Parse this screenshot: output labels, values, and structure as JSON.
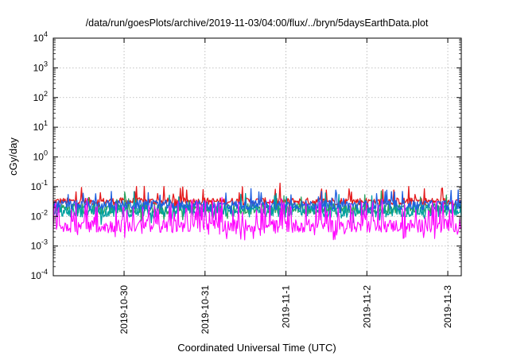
{
  "chart_data": {
    "type": "line",
    "title": "/data/run/goesPlots/archive/2019-11-03/04:00/flux/../bryn/5daysEarthData.plot",
    "xlabel": "Coordinated Universal Time (UTC)",
    "ylabel": "cGy/day",
    "yscale": "log",
    "ylim": [
      0.0001,
      10000
    ],
    "xlim": [
      "2019-10-29T03:00",
      "2019-11-03T04:00"
    ],
    "grid": true,
    "y_ticks": [
      {
        "base": "10",
        "exp": "-4"
      },
      {
        "base": "10",
        "exp": "-3"
      },
      {
        "base": "10",
        "exp": "-2"
      },
      {
        "base": "10",
        "exp": "-1"
      },
      {
        "base": "10",
        "exp": "0"
      },
      {
        "base": "10",
        "exp": "1"
      },
      {
        "base": "10",
        "exp": "2"
      },
      {
        "base": "10",
        "exp": "3"
      },
      {
        "base": "10",
        "exp": "4"
      }
    ],
    "x_ticks": [
      {
        "label": "2019-10-30",
        "value": "2019-10-30T00:00"
      },
      {
        "label": "2019-10-31",
        "value": "2019-10-31T00:00"
      },
      {
        "label": "2019-11-1",
        "value": "2019-11-01T00:00"
      },
      {
        "label": "2019-11-2",
        "value": "2019-11-02T00:00"
      },
      {
        "label": "2019-11-3",
        "value": "2019-11-03T00:00"
      }
    ],
    "series": [
      {
        "color": "#e41a1c",
        "base": 0.032,
        "spread": 0.12,
        "spikes": 0.06
      },
      {
        "color": "#2ca25f",
        "base": 0.018,
        "spread": 0.18,
        "spikes": 0.04
      },
      {
        "color": "#00a0a0",
        "base": 0.015,
        "spread": 0.2,
        "spikes": 0.05
      },
      {
        "color": "#1f5fe0",
        "base": 0.024,
        "spread": 0.16,
        "spikes": 0.05
      },
      {
        "color": "#ff00ff",
        "base": 0.0048,
        "spread": 0.22,
        "spikes": 0.18
      }
    ],
    "colors": {
      "grid": "#b0b0b0",
      "axis": "#000000"
    }
  }
}
